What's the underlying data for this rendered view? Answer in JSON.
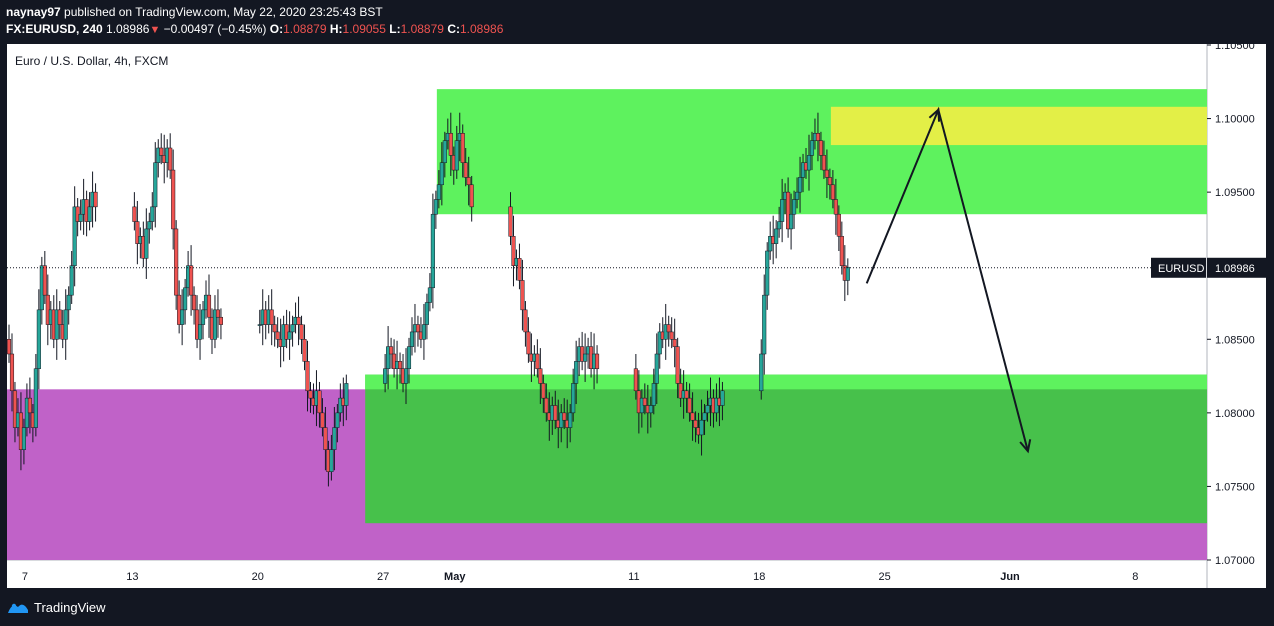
{
  "header": {
    "publisher_user": "naynay97",
    "publish_text": "published on TradingView.com, May 22, 2020 23:25:43 BST",
    "symbol": "FX:EURUSD, 240",
    "last": "1.08986",
    "change_arrow": "▼",
    "change": "−0.00497 (−0.45%)",
    "o_label": "O:",
    "o_val": "1.08879",
    "h_label": "H:",
    "h_val": "1.09055",
    "l_label": "L:",
    "l_val": "1.08879",
    "c_label": "C:",
    "c_val": "1.08986"
  },
  "footer": {
    "brand": "TradingView"
  },
  "colors": {
    "background": "#ffffff",
    "frame": "#131722",
    "up_candle": "#26a69a",
    "down_candle": "#ef5350",
    "wick": "#131722",
    "zone_green": "#5ef25e",
    "zone_green_dark": "#47c14b",
    "zone_yellow": "#e3ef47",
    "zone_purple": "#c062c8"
  },
  "chart_data": {
    "type": "candlestick",
    "title": "Euro / U.S. Dollar, 4h, FXCM",
    "y_range": [
      1.07,
      1.105
    ],
    "y_ticks": [
      "1.10500",
      "1.10000",
      "1.09500",
      "1.09000",
      "1.08500",
      "1.08000",
      "1.07500",
      "1.07000"
    ],
    "x_range": [
      "2020-04-06",
      "2020-06-12"
    ],
    "x_ticks": [
      {
        "date": "2020-04-07",
        "label": "7",
        "bold": false
      },
      {
        "date": "2020-04-13",
        "label": "13",
        "bold": false
      },
      {
        "date": "2020-04-20",
        "label": "20",
        "bold": false
      },
      {
        "date": "2020-04-27",
        "label": "27",
        "bold": false
      },
      {
        "date": "2020-05-01",
        "label": "May",
        "bold": true
      },
      {
        "date": "2020-05-11",
        "label": "11",
        "bold": false
      },
      {
        "date": "2020-05-18",
        "label": "18",
        "bold": false
      },
      {
        "date": "2020-05-25",
        "label": "25",
        "bold": false
      },
      {
        "date": "2020-06-01",
        "label": "Jun",
        "bold": true
      },
      {
        "date": "2020-06-08",
        "label": "8",
        "bold": false
      }
    ],
    "price_label": {
      "symbol": "EURUSD",
      "value": "1.08986",
      "price": 1.08986
    },
    "zones": [
      {
        "kind": "purple",
        "x0": "2020-04-06",
        "x1": "2020-06-12",
        "y0": 1.07,
        "y1": 1.0816
      },
      {
        "kind": "green_dark",
        "x0": "2020-04-26",
        "x1": "2020-06-12",
        "y0": 1.0725,
        "y1": 1.0826
      },
      {
        "kind": "green",
        "x0": "2020-04-26",
        "x1": "2020-06-12",
        "y0": 1.0816,
        "y1": 1.0826
      },
      {
        "kind": "green",
        "x0": "2020-04-30",
        "x1": "2020-06-12",
        "y0": 1.0935,
        "y1": 1.102
      },
      {
        "kind": "yellow",
        "x0": "2020-05-22",
        "x1": "2020-06-12",
        "y0": 1.0982,
        "y1": 1.1008
      }
    ],
    "projection": [
      {
        "date": "2020-05-24",
        "price": 1.0888
      },
      {
        "date": "2020-05-28",
        "price": 1.1006
      },
      {
        "date": "2020-06-02",
        "price": 1.0774
      }
    ],
    "closes": [
      [
        "2020-04-06",
        [
          1.084,
          1.0815,
          1.079,
          1.08,
          1.0775,
          1.079
        ]
      ],
      [
        "2020-04-07",
        [
          1.081,
          1.08,
          1.079,
          1.083,
          1.087,
          1.09
        ]
      ],
      [
        "2020-04-08",
        [
          1.088,
          1.086,
          1.087,
          1.085,
          1.087,
          1.086
        ]
      ],
      [
        "2020-04-09",
        [
          1.085,
          1.087,
          1.088,
          1.09,
          1.094,
          1.093
        ]
      ],
      [
        "2020-04-10",
        [
          1.0935,
          1.0945,
          1.093,
          1.094,
          1.095,
          1.094
        ]
      ],
      [
        "2020-04-13",
        [
          1.093,
          1.0915,
          1.092,
          1.0905,
          1.0925,
          1.093
        ]
      ],
      [
        "2020-04-14",
        [
          1.094,
          1.097,
          1.098,
          1.0975,
          1.097,
          1.098
        ]
      ],
      [
        "2020-04-15",
        [
          1.0965,
          1.0925,
          1.088,
          1.086,
          1.087,
          1.0885
        ]
      ],
      [
        "2020-04-16",
        [
          1.09,
          1.088,
          1.087,
          1.085,
          1.086,
          1.087
        ]
      ],
      [
        "2020-04-17",
        [
          1.088,
          1.0865,
          1.085,
          1.087,
          1.0865,
          1.086
        ]
      ],
      [
        "2020-04-20",
        [
          1.086,
          1.087,
          1.086,
          1.087,
          1.086,
          1.0855
        ]
      ],
      [
        "2020-04-21",
        [
          1.085,
          1.0845,
          1.086,
          1.085,
          1.0855,
          1.086
        ]
      ],
      [
        "2020-04-22",
        [
          1.0865,
          1.086,
          1.085,
          1.0835,
          1.0815,
          1.081
        ]
      ],
      [
        "2020-04-23",
        [
          1.0805,
          1.0815,
          1.08,
          1.079,
          1.0775,
          1.076
        ]
      ],
      [
        "2020-04-24",
        [
          1.0775,
          1.079,
          1.08,
          1.081,
          1.0805,
          1.082
        ]
      ],
      [
        "2020-04-27",
        [
          1.083,
          1.0845,
          1.084,
          1.083,
          1.0835,
          1.083
        ]
      ],
      [
        "2020-04-28",
        [
          1.082,
          1.083,
          1.0845,
          1.0855,
          1.086,
          1.0855
        ]
      ],
      [
        "2020-04-29",
        [
          1.085,
          1.086,
          1.0875,
          1.0885,
          1.0935,
          1.0945
        ]
      ],
      [
        "2020-04-30",
        [
          1.0955,
          1.097,
          1.0985,
          1.099,
          1.0975,
          1.0965
        ]
      ],
      [
        "2020-05-01",
        [
          1.0985,
          1.099,
          1.097,
          1.096,
          1.0955,
          1.094
        ]
      ],
      [
        "2020-05-04",
        [
          1.092,
          1.09,
          1.0905,
          1.089,
          1.087,
          1.0855
        ]
      ],
      [
        "2020-05-05",
        [
          1.084,
          1.0835,
          1.084,
          1.083,
          1.082,
          1.081
        ]
      ],
      [
        "2020-05-06",
        [
          1.08,
          1.0795,
          1.0805,
          1.0795,
          1.079,
          1.08
        ]
      ],
      [
        "2020-05-07",
        [
          1.0795,
          1.079,
          1.08,
          1.082,
          1.0835,
          1.0845
        ]
      ],
      [
        "2020-05-08",
        [
          1.0835,
          1.084,
          1.0845,
          1.083,
          1.084,
          1.083
        ]
      ],
      [
        "2020-05-11",
        [
          1.0815,
          1.08,
          1.081,
          1.0805,
          1.08,
          1.0805
        ]
      ],
      [
        "2020-05-12",
        [
          1.082,
          1.084,
          1.0855,
          1.085,
          1.086,
          1.0855
        ]
      ],
      [
        "2020-05-13",
        [
          1.085,
          1.0845,
          1.082,
          1.081,
          1.0815,
          1.081
        ]
      ],
      [
        "2020-05-14",
        [
          1.08,
          1.0795,
          1.079,
          1.0785,
          1.0795,
          1.08
        ]
      ],
      [
        "2020-05-15",
        [
          1.0805,
          1.081,
          1.08,
          1.081,
          1.0805,
          1.0815
        ]
      ],
      [
        "2020-05-18",
        [
          1.084,
          1.088,
          1.091,
          1.092,
          1.0915,
          1.0925
        ]
      ],
      [
        "2020-05-19",
        [
          1.093,
          1.0945,
          1.095,
          1.0925,
          1.0935,
          1.0945
        ]
      ],
      [
        "2020-05-20",
        [
          1.095,
          1.096,
          1.097,
          1.0965,
          1.0975,
          1.0985
        ]
      ],
      [
        "2020-05-21",
        [
          1.099,
          1.0985,
          1.0975,
          1.0965,
          1.096,
          1.0955
        ]
      ],
      [
        "2020-05-22",
        [
          1.0945,
          1.0935,
          1.092,
          1.09,
          1.089,
          1.0899
        ]
      ]
    ]
  }
}
